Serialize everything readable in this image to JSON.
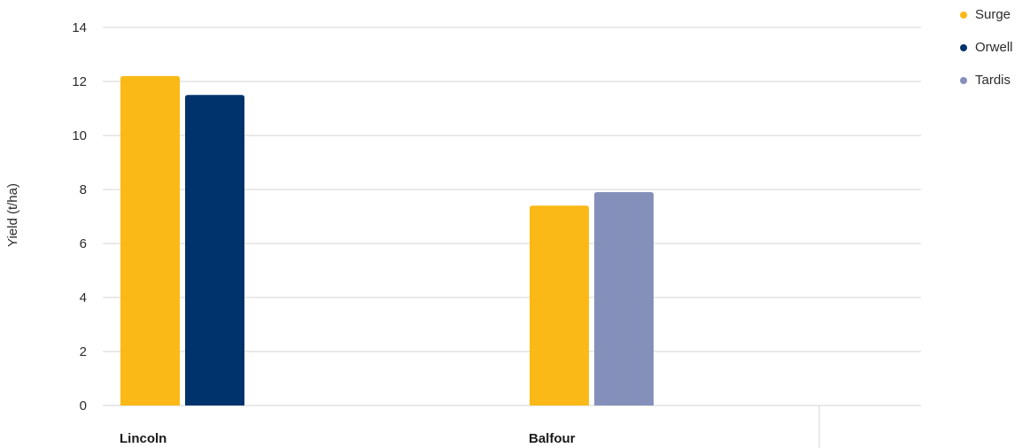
{
  "chart_data": {
    "type": "bar",
    "ylabel": "Yield (t/ha)",
    "ylim": [
      0,
      14
    ],
    "yticks": [
      0,
      2,
      4,
      6,
      8,
      10,
      12,
      14
    ],
    "grid": true,
    "legend_position": "top-right",
    "groups": [
      {
        "label": "Lincoln",
        "bars": [
          {
            "series": "Surge",
            "value": 12.2
          },
          {
            "series": "Orwell",
            "value": 11.5
          }
        ]
      },
      {
        "label": "Balfour",
        "bars": [
          {
            "series": "Surge",
            "value": 7.4
          },
          {
            "series": "Tardis",
            "value": 7.9
          }
        ]
      }
    ],
    "series": [
      {
        "name": "Surge",
        "color": "#fbb917"
      },
      {
        "name": "Orwell",
        "color": "#00336b"
      },
      {
        "name": "Tardis",
        "color": "#8490b9"
      }
    ]
  }
}
